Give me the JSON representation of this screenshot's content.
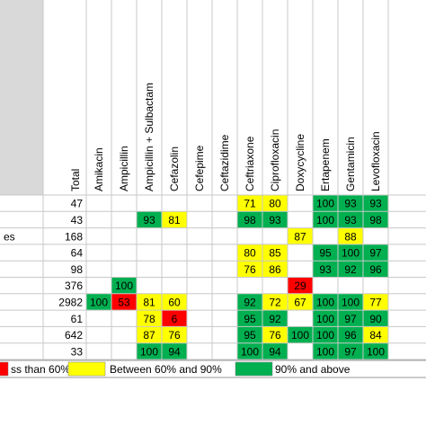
{
  "chart_data": {
    "type": "table",
    "row_labels": [
      "",
      "",
      "es",
      "",
      "",
      "",
      "",
      "",
      "",
      ""
    ],
    "total_header": "Total",
    "totals": [
      47,
      43,
      168,
      64,
      98,
      376,
      2982,
      61,
      642,
      33
    ],
    "columns": [
      "Amikacin",
      "Ampicillin",
      "Ampicillin + Sulbactam",
      "Cefazolin",
      "Cefepime",
      "Ceftazidime",
      "Ceftriaxone",
      "Ciprofloxacin",
      "Doxycycline",
      "Ertapenem",
      "Gentamicin",
      "Levofloxacin"
    ],
    "values": [
      [
        null,
        null,
        null,
        null,
        null,
        null,
        71,
        80,
        null,
        100,
        93,
        93
      ],
      [
        null,
        null,
        93,
        81,
        null,
        null,
        98,
        93,
        null,
        100,
        93,
        98
      ],
      [
        null,
        null,
        null,
        null,
        null,
        null,
        null,
        null,
        87,
        null,
        88,
        null
      ],
      [
        null,
        null,
        null,
        null,
        null,
        null,
        80,
        85,
        null,
        95,
        100,
        97
      ],
      [
        null,
        null,
        null,
        null,
        null,
        null,
        76,
        86,
        null,
        93,
        92,
        96
      ],
      [
        null,
        100,
        null,
        null,
        null,
        null,
        null,
        null,
        29,
        null,
        null,
        null
      ],
      [
        100,
        53,
        81,
        60,
        null,
        null,
        92,
        72,
        67,
        100,
        100,
        77
      ],
      [
        null,
        null,
        78,
        6,
        null,
        null,
        95,
        92,
        null,
        100,
        97,
        90
      ],
      [
        null,
        null,
        87,
        76,
        null,
        null,
        95,
        76,
        100,
        100,
        96,
        84
      ],
      [
        null,
        null,
        100,
        94,
        null,
        null,
        100,
        94,
        null,
        100,
        97,
        100
      ]
    ],
    "thresholds": [
      60,
      90
    ],
    "legend": [
      {
        "label": "ss than 60%",
        "color": "#ff0000"
      },
      {
        "label": "Between 60% and 90%",
        "color": "#ffff00"
      },
      {
        "label": "90% and above",
        "color": "#00b050"
      }
    ],
    "colors": {
      "low": "#ff0000",
      "mid": "#ffff00",
      "high": "#00b050",
      "grid": "#c8c8c8",
      "header_band": "#d9d9d9",
      "text": "#000000"
    }
  }
}
